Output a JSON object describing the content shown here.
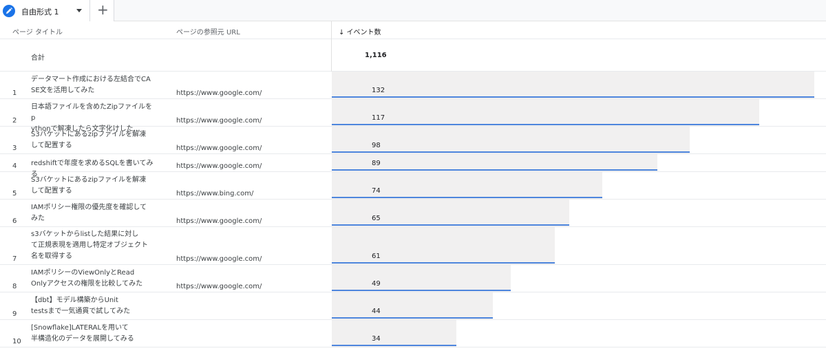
{
  "tab": {
    "label": "自由形式 1",
    "add_label": "+"
  },
  "headers": {
    "page_title": "ページ タイトル",
    "referrer": "ページの参照元 URL",
    "events": "↓ イベント数"
  },
  "total": {
    "label": "合計",
    "value": "1,116"
  },
  "max_value": 132,
  "rows": [
    {
      "num": "1",
      "title_lines": [
        "データマート作成における左結合でCA",
        "SE文を活用してみた"
      ],
      "url": "https://www.google.com/",
      "value": 132,
      "value_label": "132"
    },
    {
      "num": "2",
      "title_lines": [
        "日本語ファイルを含めたZipファイルをp",
        "ythonで解凍したら文字化けした…"
      ],
      "url": "https://www.google.com/",
      "value": 117,
      "value_label": "117"
    },
    {
      "num": "3",
      "title_lines": [
        "S3バケットにあるzipファイルを解凍",
        "して配置する"
      ],
      "url": "https://www.google.com/",
      "value": 98,
      "value_label": "98"
    },
    {
      "num": "4",
      "title_lines": [
        "redshiftで年度を求めるSQLを書いてみる"
      ],
      "url": "https://www.google.com/",
      "value": 89,
      "value_label": "89"
    },
    {
      "num": "5",
      "title_lines": [
        "S3バケットにあるzipファイルを解凍",
        "して配置する"
      ],
      "url": "https://www.bing.com/",
      "value": 74,
      "value_label": "74"
    },
    {
      "num": "6",
      "title_lines": [
        "IAMポリシー権限の優先度を確認して",
        "みた"
      ],
      "url": "https://www.google.com/",
      "value": 65,
      "value_label": "65"
    },
    {
      "num": "7",
      "title_lines": [
        "s3バケットからlistした結果に対し",
        "て正規表現を適用し特定オブジェクト",
        "名を取得する"
      ],
      "url": "https://www.google.com/",
      "value": 61,
      "value_label": "61"
    },
    {
      "num": "8",
      "title_lines": [
        "IAMポリシーのViewOnlyとRead",
        "Onlyアクセスの権限を比較してみた"
      ],
      "url": "https://www.google.com/",
      "value": 49,
      "value_label": "49"
    },
    {
      "num": "9",
      "title_lines": [
        "【dbt】モデル構築からUnit",
        "testsまで一気通貫で試してみた"
      ],
      "url": "",
      "value": 44,
      "value_label": "44"
    },
    {
      "num": "10",
      "title_lines": [
        "[Snowflake]LATERALを用いて",
        "半構造化のデータを展開してみる"
      ],
      "url": "",
      "value": 34,
      "value_label": "34"
    }
  ],
  "icons": {
    "tab_icon": "pencil-icon",
    "caret": "caret-down-icon"
  },
  "colors": {
    "accent": "#1a73e8",
    "bar_line": "#4d85dd",
    "bar_bg": "#f1f0f0"
  }
}
